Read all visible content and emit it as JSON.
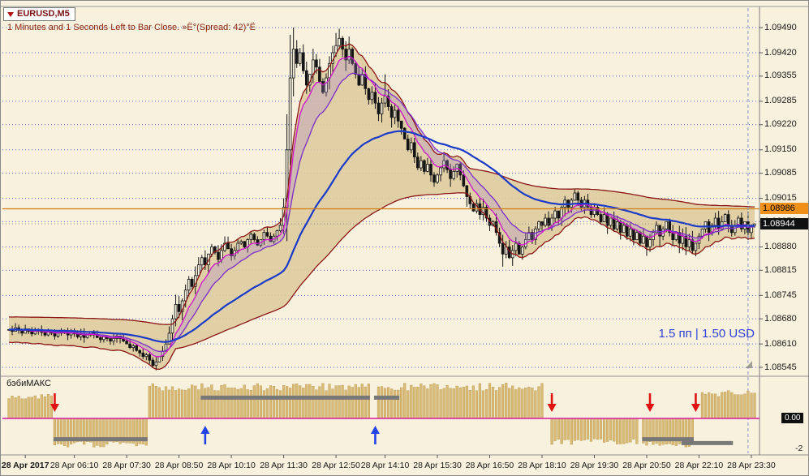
{
  "colors": {
    "background": "#F7F1DD",
    "grid": "#4E5FD0",
    "candle": "#141414",
    "cloud_fill": "#DECBA0",
    "cloud_edge": "#8B1616",
    "ma_fast_magenta": "#CC10CC",
    "ma_mid_violet": "#7C2DC8",
    "ma_slow_blue": "#1A3AC8",
    "lavender_fill": "#A080D0",
    "orange_line": "#D08012",
    "panel_bar": "#D9BB79",
    "panel_bar_edge": "#B99648",
    "panel_gray": "#787878",
    "panel_magenta": "#DA18A0",
    "arrow_red": "#E01212",
    "arrow_blue": "#2443E6",
    "tag_orange_bg": "#F09018",
    "tag_black_bg": "#101010"
  },
  "header": {
    "symbol": "EURUSD,M5",
    "countdown": "1 Minutes and 1 Seconds Left to Bar Close. »Ë°(Spread: 42)°Ë"
  },
  "overlay": {
    "profit_text": "1.5 пп | 1.50 USD"
  },
  "price_axis": {
    "ticks": [
      "1.09490",
      "1.09420",
      "1.09355",
      "1.09285",
      "1.09220",
      "1.09150",
      "1.09085",
      "1.09015",
      "1.08950",
      "1.08880",
      "1.08815",
      "1.08745",
      "1.08680",
      "1.08610",
      "1.08545"
    ],
    "tag_orange": "1.08986",
    "tag_black": "1.08944"
  },
  "chart_data": {
    "type": "candlestick",
    "symbol": "EURUSD",
    "timeframe": "M5",
    "price_top": 1.0949,
    "price_bottom": 1.08545,
    "x_labels": [
      [
        5,
        "28 Apr 2017"
      ],
      [
        20,
        "28 Apr 06:10"
      ],
      [
        36,
        "28 Apr 07:30"
      ],
      [
        52,
        "28 Apr 08:50"
      ],
      [
        68,
        "28 Apr 10:10"
      ],
      [
        84,
        "28 Apr 11:30"
      ],
      [
        100,
        "28 Apr 12:50"
      ],
      [
        115,
        "28 Apr 14:10"
      ],
      [
        131,
        "28 Apr 15:30"
      ],
      [
        147,
        "28 Apr 16:50"
      ],
      [
        163,
        "28 Apr 18:10"
      ],
      [
        179,
        "28 Apr 19:30"
      ],
      [
        195,
        "28 Apr 20:50"
      ],
      [
        211,
        "28 Apr 22:10"
      ],
      [
        227,
        "28 Apr 23:30"
      ]
    ],
    "candles_close": [
      1.0865,
      1.08645,
      1.08655,
      1.08648,
      1.0864,
      1.08652,
      1.08645,
      1.08638,
      1.08645,
      1.0865,
      1.08642,
      1.08635,
      1.08645,
      1.0864,
      1.08632,
      1.0864,
      1.08648,
      1.0864,
      1.08635,
      1.08642,
      1.08638,
      1.0863,
      1.08636,
      1.08628,
      1.08635,
      1.08642,
      1.08635,
      1.08628,
      1.08622,
      1.0863,
      1.08625,
      1.08618,
      1.08625,
      1.08632,
      1.08625,
      1.08618,
      1.0861,
      1.086,
      1.08605,
      1.08592,
      1.08585,
      1.08575,
      1.0858,
      1.08565,
      1.0855,
      1.0856,
      1.08575,
      1.0859,
      1.0861,
      1.0864,
      1.0868,
      1.0872,
      1.087,
      1.0873,
      1.0876,
      1.0879,
      1.0877,
      1.088,
      1.0883,
      1.0885,
      1.0883,
      1.0886,
      1.0888,
      1.08865,
      1.08845,
      1.0887,
      1.0889,
      1.08875,
      1.08855,
      1.0887,
      1.0889,
      1.08895,
      1.0888,
      1.089,
      1.08915,
      1.089,
      1.08885,
      1.089,
      1.0892,
      1.0891,
      1.08895,
      1.0891,
      1.08925,
      1.0894,
      1.0899,
      1.0915,
      1.0935,
      1.0943,
      1.0939,
      1.0942,
      1.0937,
      1.0933,
      1.0936,
      1.094,
      1.0938,
      1.0934,
      1.0931,
      1.0935,
      1.0939,
      1.0942,
      1.0944,
      1.0946,
      1.0943,
      1.094,
      1.0943,
      1.0939,
      1.0936,
      1.0933,
      1.0936,
      1.0932,
      1.0929,
      1.0931,
      1.0928,
      1.0925,
      1.0928,
      1.093,
      1.0927,
      1.0924,
      1.0926,
      1.0923,
      1.0921,
      1.0918,
      1.0915,
      1.0917,
      1.0913,
      1.091,
      1.0912,
      1.0909,
      1.0911,
      1.0908,
      1.0906,
      1.0908,
      1.091,
      1.0912,
      1.09095,
      1.0907,
      1.0909,
      1.0911,
      1.0908,
      1.0905,
      1.0902,
      1.09,
      1.0898,
      1.09,
      1.0897,
      1.0899,
      1.0896,
      1.0894,
      1.0895,
      1.0892,
      1.0889,
      1.0886,
      1.0888,
      1.0885,
      1.0887,
      1.0889,
      1.0886,
      1.0888,
      1.089,
      1.0892,
      1.089,
      1.0893,
      1.0895,
      1.0894,
      1.0896,
      1.0894,
      1.0896,
      1.0898,
      1.0896,
      1.0899,
      1.0901,
      1.0899,
      1.0901,
      1.0903,
      1.0901,
      1.0899,
      1.0901,
      1.0899,
      1.0897,
      1.0899,
      1.0897,
      1.0895,
      1.0897,
      1.0894,
      1.0896,
      1.0893,
      1.0895,
      1.0892,
      1.0894,
      1.0891,
      1.0893,
      1.089,
      1.0892,
      1.0889,
      1.0891,
      1.0888,
      1.089,
      1.0892,
      1.0894,
      1.0891,
      1.0893,
      1.0895,
      1.0892,
      1.089,
      1.0892,
      1.0889,
      1.0891,
      1.0888,
      1.089,
      1.0887,
      1.0889,
      1.0891,
      1.0893,
      1.0895,
      1.0892,
      1.0894,
      1.0896,
      1.0893,
      1.0895,
      1.0897,
      1.0894,
      1.0892,
      1.0894,
      1.0896,
      1.0893,
      1.0895,
      1.0892,
      1.0894,
      1.08944
    ],
    "wick_overrides": {
      "43": {
        "l": 1.08555
      },
      "44": {
        "l": 1.08545
      },
      "86": {
        "h": 1.0947
      },
      "87": {
        "h": 1.0949
      },
      "88": {
        "h": 1.09455
      },
      "100": {
        "h": 1.09475
      },
      "101": {
        "h": 1.09487
      },
      "104": {
        "h": 1.09465
      },
      "115": {
        "h": 1.0936
      },
      "151": {
        "l": 1.08825
      },
      "195": {
        "l": 1.08855
      }
    },
    "overlays": {
      "horizontal_line_price": 1.08986,
      "bid_price": 1.08944,
      "vertical_dashed_bar": 226
    },
    "indicator": {
      "name": "бэбиМАКС",
      "zero_label": "0.00",
      "bottom_label": "-2",
      "up_bars": [
        [
          0,
          13,
          1.6
        ],
        [
          43,
          110,
          2.3
        ],
        [
          113,
          163,
          2.3
        ],
        [
          212,
          228,
          1.8
        ]
      ],
      "down_bars": [
        [
          14,
          42,
          -1.9
        ],
        [
          166,
          192,
          -1.7
        ],
        [
          194,
          209,
          -1.9
        ]
      ],
      "gray_segments": [
        [
          14,
          42,
          -1.35
        ],
        [
          59,
          110,
          1.35
        ],
        [
          112,
          119,
          1.35
        ],
        [
          194,
          209,
          -1.35
        ],
        [
          206,
          221,
          -1.6
        ]
      ],
      "arrows": [
        {
          "bar": 14,
          "dir": "down"
        },
        {
          "bar": 60,
          "dir": "up"
        },
        {
          "bar": 112,
          "dir": "up"
        },
        {
          "bar": 166,
          "dir": "down"
        },
        {
          "bar": 196,
          "dir": "down"
        },
        {
          "bar": 210,
          "dir": "down"
        }
      ]
    }
  }
}
